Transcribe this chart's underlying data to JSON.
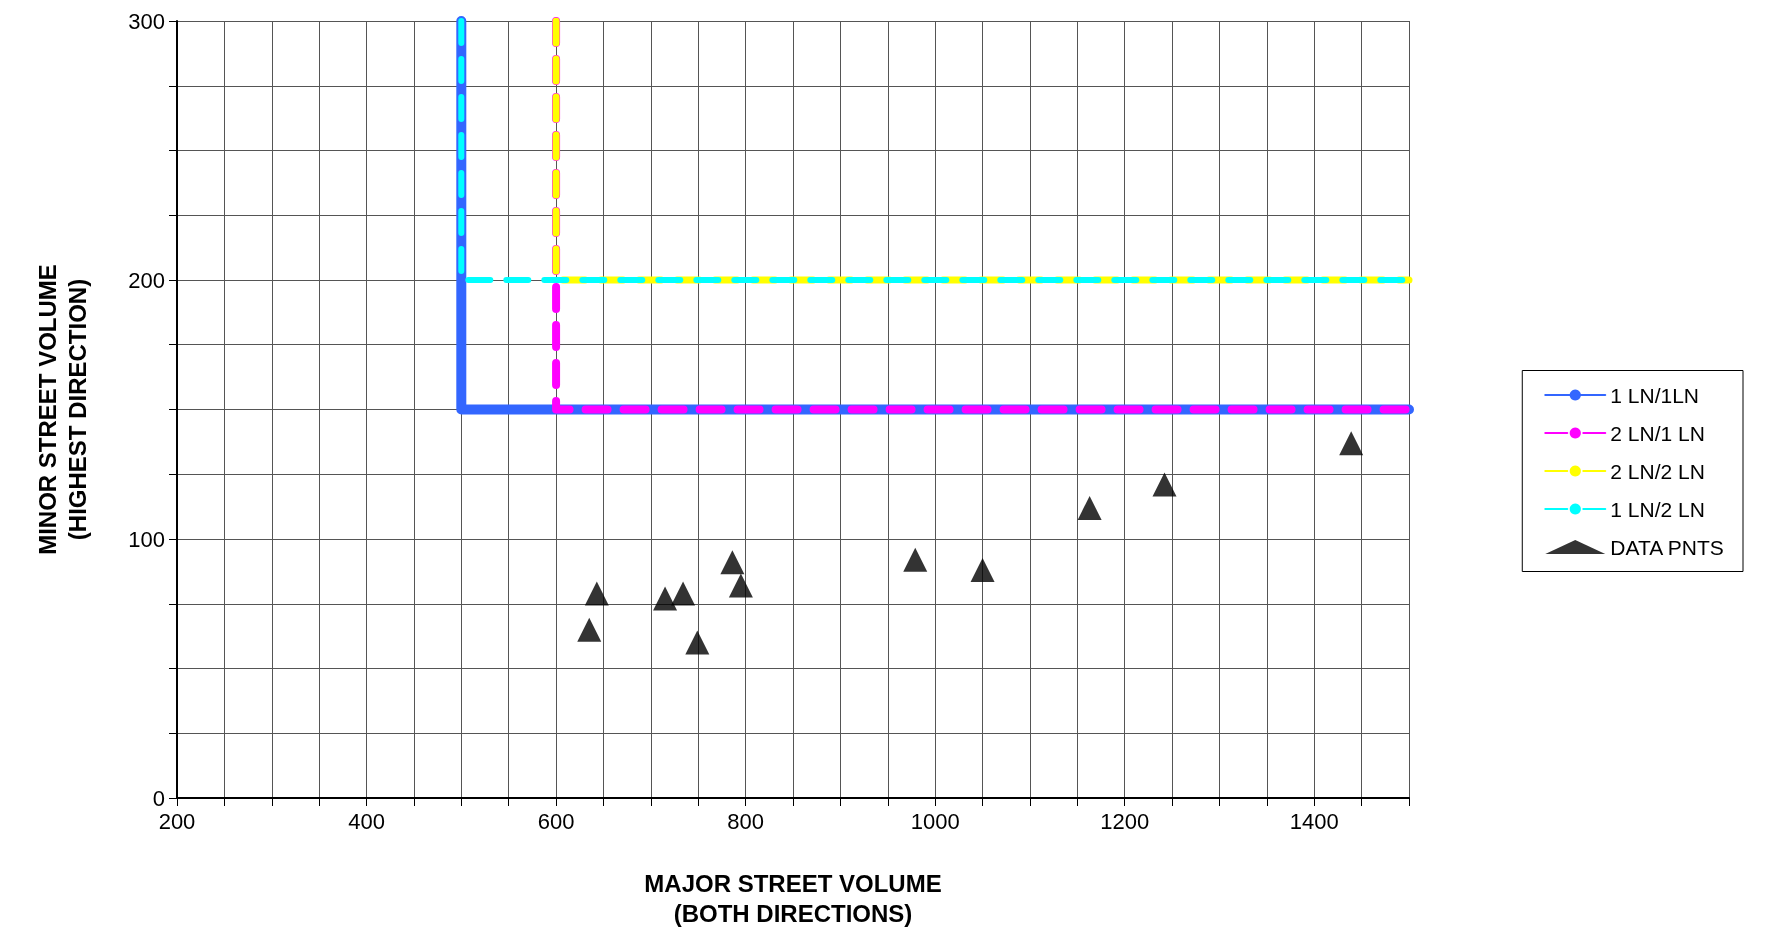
{
  "chart_data": {
    "type": "line",
    "xlabel": "MAJOR STREET VOLUME\n(BOTH DIRECTIONS)",
    "ylabel": "MINOR STREET VOLUME\n(HIGHEST DIRECTION)",
    "xlim": [
      200,
      1500
    ],
    "ylim": [
      0,
      300
    ],
    "xticks": [
      200,
      {
        "value": 250,
        "label": null
      },
      {
        "value": 300,
        "label": null
      },
      {
        "value": 350,
        "label": null
      },
      400,
      {
        "value": 450,
        "label": null
      },
      {
        "value": 500,
        "label": null
      },
      {
        "value": 550,
        "label": null
      },
      600,
      {
        "value": 650,
        "label": null
      },
      {
        "value": 700,
        "label": null
      },
      {
        "value": 750,
        "label": null
      },
      800,
      {
        "value": 850,
        "label": null
      },
      {
        "value": 900,
        "label": null
      },
      {
        "value": 950,
        "label": null
      },
      1000,
      {
        "value": 1050,
        "label": null
      },
      {
        "value": 1100,
        "label": null
      },
      {
        "value": 1150,
        "label": null
      },
      1200,
      {
        "value": 1250,
        "label": null
      },
      {
        "value": 1300,
        "label": null
      },
      {
        "value": 1350,
        "label": null
      },
      1400,
      {
        "value": 1450,
        "label": null
      },
      {
        "value": 1500,
        "label": null
      }
    ],
    "yticks": [
      0,
      {
        "value": 25,
        "label": null
      },
      {
        "value": 50,
        "label": null
      },
      {
        "value": 75,
        "label": null
      },
      100,
      {
        "value": 125,
        "label": null
      },
      {
        "value": 150,
        "label": null
      },
      {
        "value": 175,
        "label": null
      },
      200,
      {
        "value": 225,
        "label": null
      },
      {
        "value": 250,
        "label": null
      },
      {
        "value": 275,
        "label": null
      },
      300
    ],
    "grid": true,
    "legend": "right",
    "series": [
      {
        "name": "1 LN/1LN",
        "color": "#3366ff",
        "line_style": "solid",
        "marker": "none",
        "x": [
          500,
          500,
          1500
        ],
        "values": [
          300,
          150,
          150
        ]
      },
      {
        "name": "2 LN/1 LN",
        "color": "#ff00ff",
        "line_style": "dashed",
        "marker": "none",
        "x": [
          600,
          600,
          1500
        ],
        "values": [
          300,
          150,
          150
        ]
      },
      {
        "name": "2 LN/2 LN",
        "color": "#ffff00",
        "line_style": "dashed",
        "marker": "none",
        "x": [
          600,
          600,
          1500
        ],
        "values": [
          300,
          200,
          200
        ]
      },
      {
        "name": "1 LN/2 LN",
        "color": "#00ffff",
        "line_style": "dashed",
        "marker": "none",
        "x": [
          500,
          500,
          1500
        ],
        "values": [
          300,
          200,
          200
        ]
      },
      {
        "name": "DATA PNTS",
        "type": "scatter",
        "color": "#000000",
        "marker": "triangle",
        "x": [
          635,
          643,
          715,
          734,
          749,
          786,
          795,
          979,
          1050,
          1163,
          1242,
          1439
        ],
        "values": [
          65,
          79,
          77,
          79,
          60,
          91,
          82,
          92,
          88,
          112,
          121,
          137
        ]
      }
    ]
  }
}
